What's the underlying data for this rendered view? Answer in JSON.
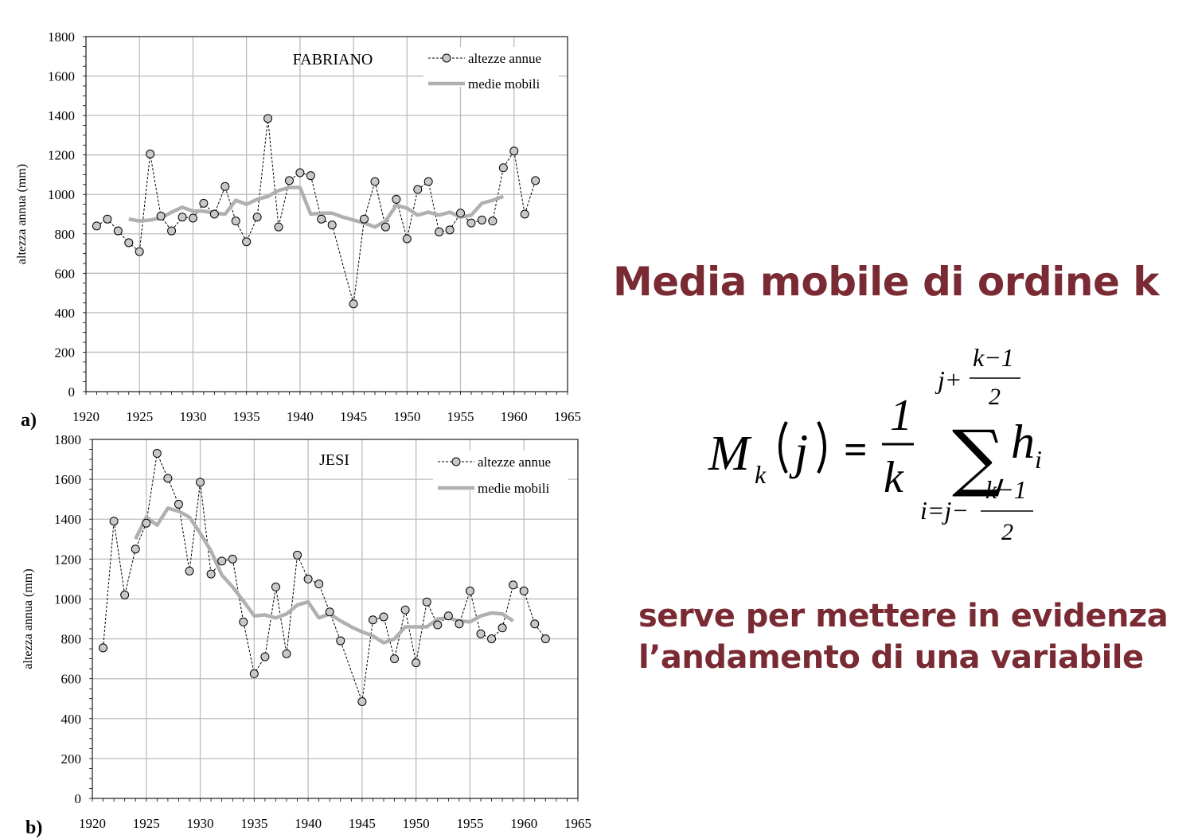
{
  "chart_data": [
    {
      "type": "line",
      "panel_label": "a)",
      "title": "FABRIANO",
      "xlabel": "",
      "ylabel": "altezza annua (mm)",
      "xlim": [
        1920,
        1965
      ],
      "ylim": [
        0,
        1800
      ],
      "x_ticks": [
        1920,
        1925,
        1930,
        1935,
        1940,
        1945,
        1950,
        1955,
        1960,
        1965
      ],
      "y_ticks": [
        0,
        200,
        400,
        600,
        800,
        1000,
        1200,
        1400,
        1600,
        1800
      ],
      "grid": true,
      "legend_position": "top-right",
      "series": [
        {
          "name": "altezze annue",
          "style": "dashed-circles",
          "color": "#000000",
          "x": [
            1921,
            1922,
            1923,
            1924,
            1925,
            1926,
            1927,
            1928,
            1929,
            1930,
            1931,
            1932,
            1933,
            1934,
            1935,
            1936,
            1937,
            1938,
            1939,
            1940,
            1941,
            1942,
            1943,
            1945,
            1946,
            1947,
            1948,
            1949,
            1950,
            1951,
            1952,
            1953,
            1954,
            1955,
            1956,
            1957,
            1958,
            1959,
            1960,
            1961,
            1962
          ],
          "y": [
            840,
            875,
            815,
            755,
            710,
            1205,
            890,
            815,
            885,
            880,
            955,
            900,
            1040,
            865,
            760,
            885,
            1385,
            835,
            1070,
            1110,
            1095,
            875,
            845,
            445,
            875,
            1065,
            835,
            975,
            775,
            1025,
            1065,
            810,
            820,
            905,
            855,
            870,
            865,
            1135,
            1220,
            900,
            1070
          ]
        },
        {
          "name": "medie mobili",
          "style": "thick-line",
          "color": "#b0b0b0",
          "x": [
            1924,
            1925,
            1926,
            1927,
            1928,
            1929,
            1930,
            1931,
            1932,
            1933,
            1934,
            1935,
            1936,
            1937,
            1938,
            1939,
            1940,
            1941,
            1942,
            1943,
            1944,
            1945,
            1946,
            1947,
            1948,
            1949,
            1950,
            1951,
            1952,
            1953,
            1954,
            1955,
            1956,
            1957,
            1958,
            1959
          ],
          "y": [
            875,
            865,
            870,
            880,
            910,
            935,
            915,
            915,
            905,
            900,
            970,
            950,
            975,
            990,
            1020,
            1035,
            1035,
            900,
            905,
            905,
            885,
            870,
            855,
            835,
            865,
            945,
            930,
            895,
            910,
            895,
            910,
            885,
            895,
            955,
            970,
            990
          ]
        }
      ]
    },
    {
      "type": "line",
      "panel_label": "b)",
      "title": "JESI",
      "xlabel": "",
      "ylabel": "altezza annua (mm)",
      "xlim": [
        1920,
        1965
      ],
      "ylim": [
        0,
        1800
      ],
      "x_ticks": [
        1920,
        1925,
        1930,
        1935,
        1940,
        1945,
        1950,
        1955,
        1960,
        1965
      ],
      "y_ticks": [
        0,
        200,
        400,
        600,
        800,
        1000,
        1200,
        1400,
        1600,
        1800
      ],
      "grid": true,
      "legend_position": "top-right",
      "series": [
        {
          "name": "altezze annue",
          "style": "dashed-circles",
          "color": "#000000",
          "x": [
            1921,
            1922,
            1923,
            1924,
            1925,
            1926,
            1927,
            1928,
            1929,
            1930,
            1931,
            1932,
            1933,
            1934,
            1935,
            1936,
            1937,
            1938,
            1939,
            1940,
            1941,
            1942,
            1943,
            1945,
            1946,
            1947,
            1948,
            1949,
            1950,
            1951,
            1952,
            1953,
            1954,
            1955,
            1956,
            1957,
            1958,
            1959,
            1960,
            1961,
            1962
          ],
          "y": [
            755,
            1390,
            1020,
            1250,
            1380,
            1730,
            1605,
            1475,
            1140,
            1585,
            1125,
            1190,
            1200,
            885,
            625,
            710,
            1060,
            725,
            1220,
            1100,
            1075,
            935,
            790,
            485,
            895,
            910,
            700,
            945,
            680,
            985,
            870,
            915,
            875,
            1040,
            825,
            800,
            855,
            1070,
            1040,
            875,
            800
          ]
        },
        {
          "name": "medie mobili",
          "style": "thick-line",
          "color": "#b0b0b0",
          "x": [
            1924,
            1925,
            1926,
            1927,
            1928,
            1929,
            1930,
            1931,
            1932,
            1933,
            1934,
            1935,
            1936,
            1937,
            1938,
            1939,
            1940,
            1941,
            1942,
            1943,
            1944,
            1945,
            1946,
            1947,
            1948,
            1949,
            1950,
            1951,
            1952,
            1953,
            1954,
            1955,
            1956,
            1957,
            1958,
            1959
          ],
          "y": [
            1300,
            1410,
            1370,
            1455,
            1440,
            1410,
            1330,
            1240,
            1120,
            1060,
            990,
            915,
            920,
            905,
            925,
            970,
            985,
            905,
            925,
            890,
            860,
            835,
            815,
            780,
            800,
            860,
            860,
            860,
            900,
            905,
            890,
            885,
            915,
            930,
            925,
            890
          ]
        }
      ]
    }
  ],
  "heading": "Media mobile di ordine k",
  "description_lines": [
    "serve per mettere in evidenza",
    "l’andamento di una variabile"
  ],
  "formula": {
    "lhs_symbol": "M",
    "lhs_subscript": "k",
    "lhs_argument": "j",
    "equals": "=",
    "fraction_numerator": "1",
    "fraction_denominator": "k",
    "sum_symbol": "∑",
    "summand": "h",
    "summand_subscript": "i",
    "upper_limit_prefix": "j+",
    "upper_limit_numerator": "k−1",
    "upper_limit_denominator": "2",
    "lower_limit_prefix": "i=j−",
    "lower_limit_numerator": "k−1",
    "lower_limit_denominator": "2"
  },
  "colors": {
    "accent_text": "#7a2a33",
    "moving_average": "#b0b0b0",
    "marker_fill": "#c8c8c8",
    "grid": "#bdbdbd"
  }
}
